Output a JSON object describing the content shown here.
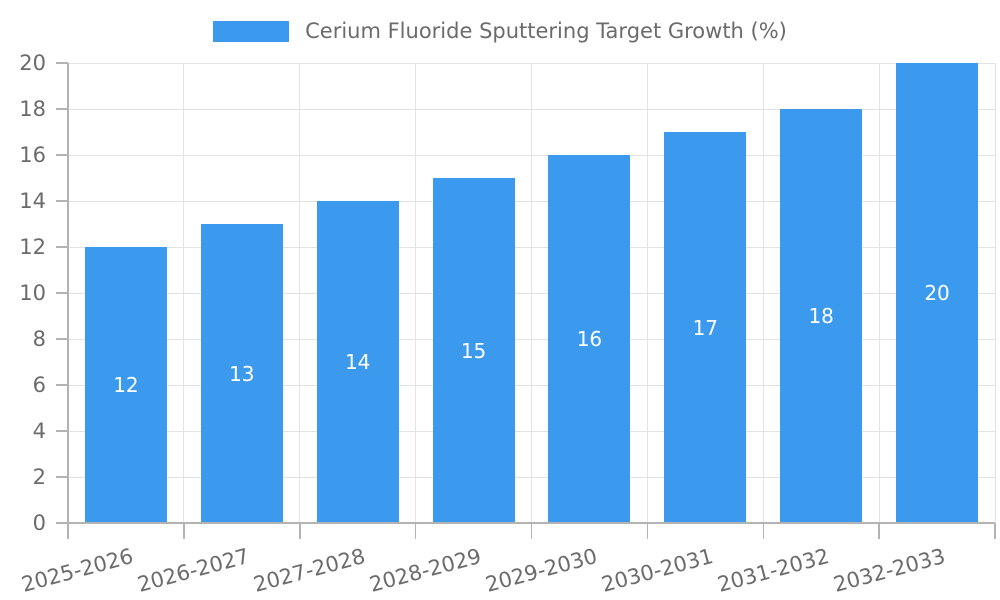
{
  "legend": {
    "label": "Cerium Fluoride Sputtering Target Growth (%)"
  },
  "chart_data": {
    "type": "bar",
    "title": "Cerium Fluoride Sputtering Target Growth (%)",
    "series_label": "Cerium Fluoride Sputtering Target Growth (%)",
    "categories": [
      "2025-2026",
      "2026-2027",
      "2027-2028",
      "2028-2029",
      "2029-2030",
      "2030-2031",
      "2031-2032",
      "2032-2033"
    ],
    "values": [
      12,
      13,
      14,
      15,
      16,
      17,
      18,
      20
    ],
    "value_labels": [
      "12",
      "13",
      "14",
      "15",
      "16",
      "17",
      "18",
      "20"
    ],
    "value_labels_position": "inside-center",
    "xlabel": "",
    "ylabel": "",
    "ylim": [
      0,
      20
    ],
    "yticks": [
      0,
      2,
      4,
      6,
      8,
      10,
      12,
      14,
      16,
      18,
      20
    ],
    "grid": true,
    "legend_position": "top",
    "colors": {
      "bar": "#3b99ee",
      "grid": "#e3e3e3",
      "axis": "#b3b3b3",
      "text": "#6b6b6b",
      "value_label": "#ffffff"
    }
  }
}
